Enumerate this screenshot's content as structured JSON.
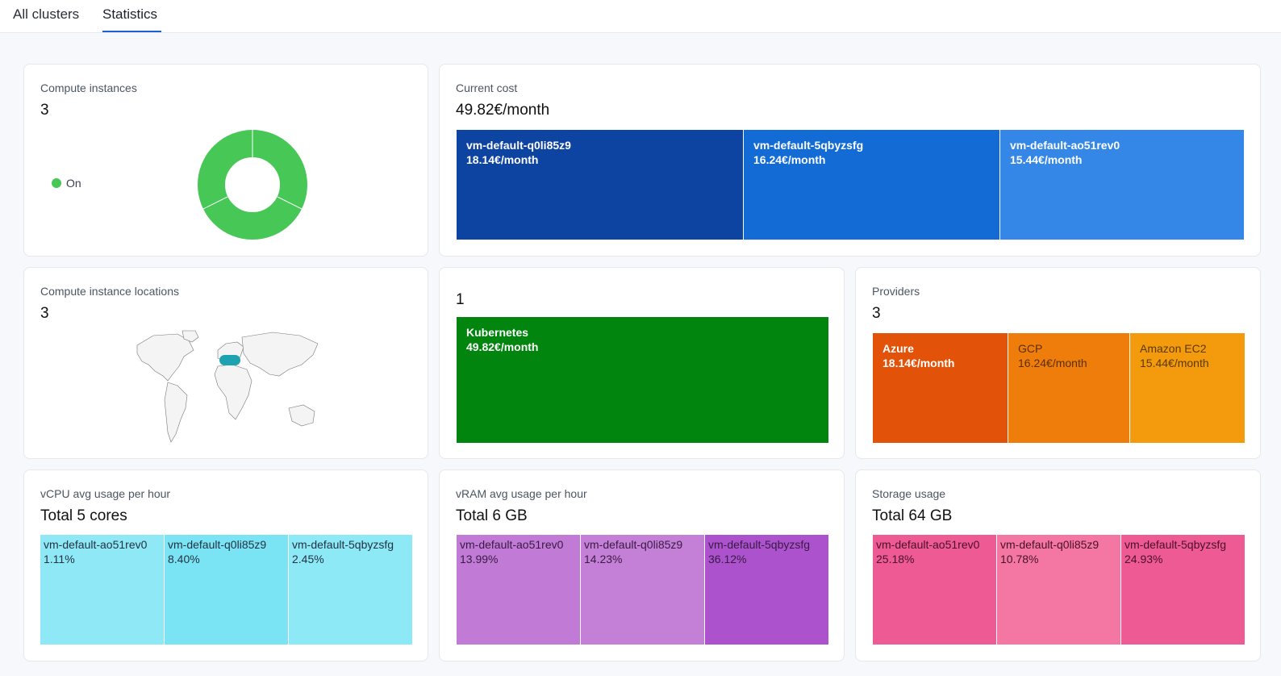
{
  "tabs": [
    {
      "label": "All clusters",
      "active": false
    },
    {
      "label": "Statistics",
      "active": true
    }
  ],
  "compute_instances": {
    "label": "Compute instances",
    "value": "3",
    "legend": "On",
    "on_color": "#46c756",
    "chart_data": {
      "type": "pie",
      "categories": [
        "On"
      ],
      "values": [
        3
      ]
    }
  },
  "current_cost": {
    "label": "Current cost",
    "value": "49.82€/month",
    "tiles": [
      {
        "name": "vm-default-q0li85z9",
        "cost": "18.14€/month",
        "color": "#0d44a1"
      },
      {
        "name": "vm-default-5qbyzsfg",
        "cost": "16.24€/month",
        "color": "#136bd6"
      },
      {
        "name": "vm-default-ao51rev0",
        "cost": "15.44€/month",
        "color": "#3487e6"
      }
    ]
  },
  "locations": {
    "label": "Compute instance locations",
    "value": "3",
    "marker_color": "#1ea2b0"
  },
  "cluster_types": {
    "value": "1",
    "tiles": [
      {
        "name": "Kubernetes",
        "cost": "49.82€/month",
        "color": "#02850e"
      }
    ]
  },
  "providers": {
    "label": "Providers",
    "value": "3",
    "tiles": [
      {
        "name": "Azure",
        "cost": "18.14€/month",
        "color": "#e25208"
      },
      {
        "name": "GCP",
        "cost": "16.24€/month",
        "color": "#ee7d0c"
      },
      {
        "name": "Amazon EC2",
        "cost": "15.44€/month",
        "color": "#f39a0d"
      }
    ]
  },
  "vcpu": {
    "label": "vCPU avg usage per hour",
    "value": "Total 5 cores",
    "tiles": [
      {
        "name": "vm-default-ao51rev0",
        "pct": "1.11%",
        "color": "#8fe8f5"
      },
      {
        "name": "vm-default-q0li85z9",
        "pct": "8.40%",
        "color": "#7ae4f4"
      },
      {
        "name": "vm-default-5qbyzsfg",
        "pct": "2.45%",
        "color": "#8ce9f5"
      }
    ]
  },
  "vram": {
    "label": "vRAM avg usage per hour",
    "value": "Total 6 GB",
    "tiles": [
      {
        "name": "vm-default-ao51rev0",
        "pct": "13.99%",
        "color": "#c17ad5"
      },
      {
        "name": "vm-default-q0li85z9",
        "pct": "14.23%",
        "color": "#c47fd7"
      },
      {
        "name": "vm-default-5qbyzsfg",
        "pct": "36.12%",
        "color": "#ac52cd"
      }
    ]
  },
  "storage": {
    "label": "Storage usage",
    "value": "Total 64 GB",
    "tiles": [
      {
        "name": "vm-default-ao51rev0",
        "pct": "25.18%",
        "color": "#ee5a93"
      },
      {
        "name": "vm-default-q0li85z9",
        "pct": "10.78%",
        "color": "#f377a2"
      },
      {
        "name": "vm-default-5qbyzsfg",
        "pct": "24.93%",
        "color": "#ee5a93"
      }
    ]
  }
}
